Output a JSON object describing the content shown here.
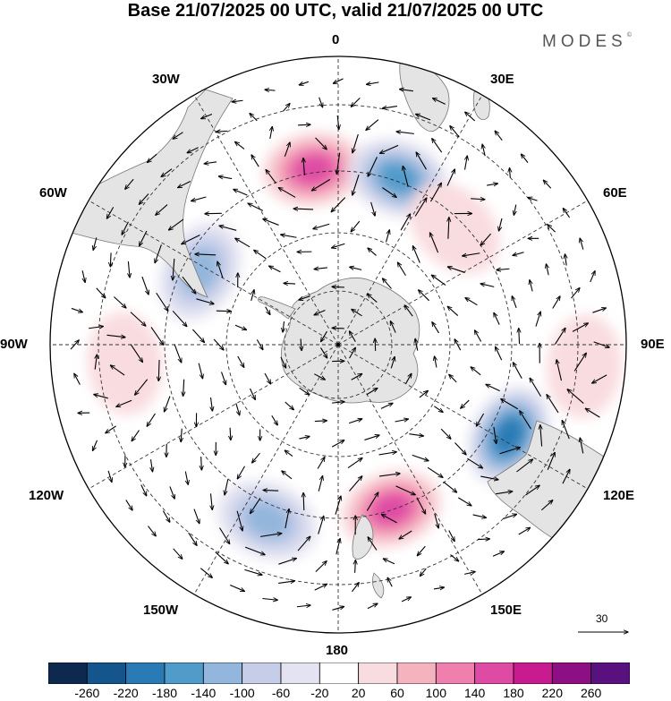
{
  "title": "Base 21/07/2025 00 UTC, valid 21/07/2025 00 UTC",
  "logo": "MODES",
  "logo_mark": "©",
  "longitude_labels": {
    "lon_0": "0",
    "lon_30e": "30E",
    "lon_60e": "60E",
    "lon_90e": "90E",
    "lon_120e": "120E",
    "lon_150e": "150E",
    "lon_180": "180",
    "lon_150w": "150W",
    "lon_120w": "120W",
    "lon_90w": "90W",
    "lon_60w": "60W",
    "lon_30w": "30W"
  },
  "reference_vector": {
    "label": "30"
  },
  "colorbar": {
    "colors": [
      "#0d2a4e",
      "#13558c",
      "#2a7ab5",
      "#4f9bca",
      "#93b6dc",
      "#c5cde8",
      "#e3e3f1",
      "#ffffff",
      "#f9dcdf",
      "#f5b3c0",
      "#ef80ad",
      "#df4ba4",
      "#c71b8f",
      "#8e0f84",
      "#5a1180"
    ],
    "labels": [
      "-260",
      "-220",
      "-180",
      "-140",
      "-100",
      "-60",
      "-20",
      "20",
      "60",
      "100",
      "140",
      "180",
      "220",
      "260"
    ]
  },
  "anomaly_centers": [
    {
      "name": "positive-anomaly-atlantic",
      "lat": -47,
      "lon": -8,
      "value": 170
    },
    {
      "name": "negative-anomaly-south-africa",
      "lat": -47,
      "lon": 20,
      "value": -160
    },
    {
      "name": "negative-anomaly-pacific-sw",
      "lat": -52,
      "lon": -62,
      "value": -110
    },
    {
      "name": "positive-anomaly-indian",
      "lat": -50,
      "lon": 45,
      "value": 60
    },
    {
      "name": "negative-anomaly-australia-south",
      "lat": -43,
      "lon": 118,
      "value": -190
    },
    {
      "name": "positive-anomaly-tasman",
      "lat": -48,
      "lon": 162,
      "value": 150
    },
    {
      "name": "negative-anomaly-south-pacific",
      "lat": -44,
      "lon": -158,
      "value": -120
    },
    {
      "name": "positive-anomaly-east-pacific",
      "lat": -38,
      "lon": -95,
      "value": 50
    },
    {
      "name": "positive-anomaly-far-east-indian",
      "lat": -30,
      "lon": 95,
      "value": 50
    }
  ]
}
